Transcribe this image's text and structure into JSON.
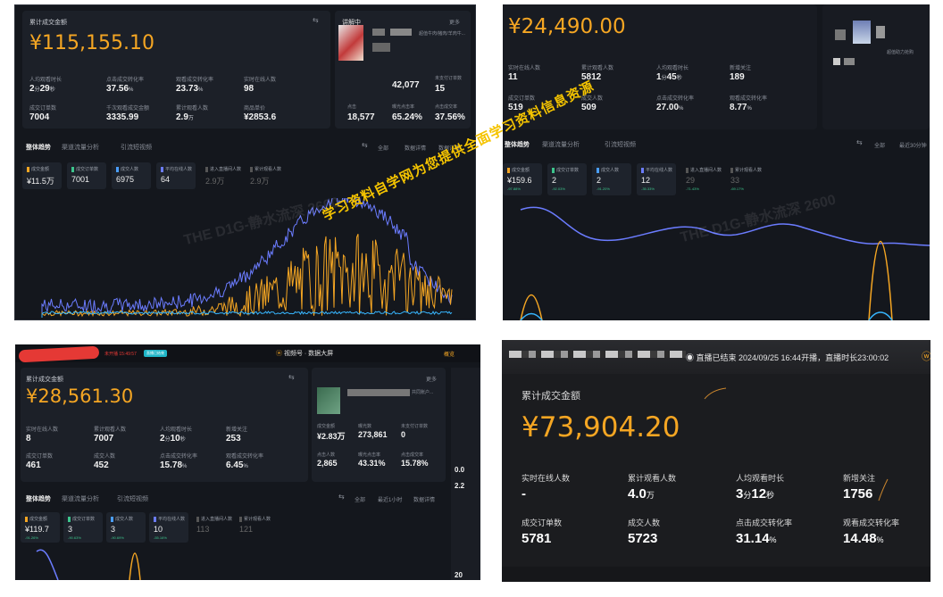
{
  "panel1": {
    "total_label": "累计成交金额",
    "total_value": "¥115,155.10",
    "metrics": [
      {
        "label": "人均观看时长",
        "value": "2",
        "unit_a": "分",
        "value_b": "29",
        "unit_b": "秒"
      },
      {
        "label": "点击成交转化率",
        "value": "37.56",
        "unit_a": "%"
      },
      {
        "label": "观看成交转化率",
        "value": "23.73",
        "unit_a": "%"
      },
      {
        "label": "实时在线人数",
        "value": "98"
      },
      {
        "label": "成交订单数",
        "value": "7004"
      },
      {
        "label": "千次观看成交金额",
        "value": "3335.99"
      },
      {
        "label": "累计观看人数",
        "value": "2.9",
        "unit_a": "万"
      },
      {
        "label": "商品单价",
        "value": "¥2853.6"
      }
    ],
    "right_card": {
      "title": "讲解中",
      "more": "更多",
      "subtitle": "超值牛肉/猪肉/羊肉牛...",
      "sold_value": "42,077",
      "orders_label": "未支付订单数",
      "orders_value": "15",
      "stats": [
        {
          "label": "点击",
          "value": "18,577"
        },
        {
          "label": "曝光点击率",
          "value": "65.24%"
        },
        {
          "label": "点击成交率",
          "value": "37.56%"
        }
      ]
    },
    "tabs": [
      "整体趋势",
      "渠道流量分析",
      "引流短视频"
    ],
    "controls": [
      "全部",
      "数据详情",
      "数据详情"
    ],
    "chips": [
      {
        "label": "成交金额",
        "value": "¥11.5万",
        "color": "#f5a623"
      },
      {
        "label": "成交订单数",
        "value": "7001",
        "color": "#3cc48c"
      },
      {
        "label": "成交人数",
        "value": "6975",
        "color": "#4a9eff"
      },
      {
        "label": "平均在线人数",
        "value": "64",
        "color": "#6b7cff"
      },
      {
        "label": "进入直播间人数",
        "value": "2.9万",
        "color": "#555"
      },
      {
        "label": "累计观看人数",
        "value": "2.9万",
        "color": "#555"
      }
    ],
    "watermark": "THE D1G-静水流深 2600"
  },
  "panel2": {
    "total_value": "¥24,490.00",
    "metrics": [
      {
        "label": "实时在线人数",
        "value": "11"
      },
      {
        "label": "累计观看人数",
        "value": "5812"
      },
      {
        "label": "人均观看时长",
        "value": "1",
        "unit_a": "分",
        "value_b": "45",
        "unit_b": "秒"
      },
      {
        "label": "新增关注",
        "value": "189"
      },
      {
        "label": "成交订单数",
        "value": "519"
      },
      {
        "label": "成交人数",
        "value": "509"
      },
      {
        "label": "点击成交转化率",
        "value": "27.00",
        "unit_a": "%"
      },
      {
        "label": "观看成交转化率",
        "value": "8.77",
        "unit_a": "%"
      }
    ],
    "right_text": "超值助力抢购",
    "tabs": [
      "整体趋势",
      "渠道流量分析",
      "引流短视频"
    ],
    "controls": [
      "全部",
      "最近30分钟"
    ],
    "chips": [
      {
        "label": "成交金额",
        "value": "¥159.6",
        "change": "-97.88%",
        "color": "#f5a623"
      },
      {
        "label": "成交订单数",
        "value": "2",
        "change": "-92.03%",
        "color": "#3cc48c"
      },
      {
        "label": "成交人数",
        "value": "2",
        "change": "-91.20%",
        "color": "#4a9eff"
      },
      {
        "label": "平均在线人数",
        "value": "12",
        "change": "-35.33%",
        "color": "#6b7cff"
      },
      {
        "label": "进入直播间人数",
        "value": "29",
        "change": "-71.43%",
        "color": "#555"
      },
      {
        "label": "累计观看人数",
        "value": "33",
        "change": "-69.17%",
        "color": "#555"
      }
    ],
    "watermark": "THE D1G-静水流深 2600"
  },
  "panel3": {
    "status": "未开播 15:49:57",
    "badge": "直播已结束",
    "header_title": "视频号 · 数据大屏",
    "header_right": "概览",
    "total_label": "累计成交金额",
    "total_value": "¥28,561.30",
    "metrics": [
      {
        "label": "实时在线人数",
        "value": "8"
      },
      {
        "label": "累计观看人数",
        "value": "7007"
      },
      {
        "label": "人均观看时长",
        "value": "2",
        "unit_a": "分",
        "value_b": "10",
        "unit_b": "秒"
      },
      {
        "label": "新增关注",
        "value": "253"
      },
      {
        "label": "成交订单数",
        "value": "461"
      },
      {
        "label": "成交人数",
        "value": "452"
      },
      {
        "label": "点击成交转化率",
        "value": "15.78",
        "unit_a": "%"
      },
      {
        "label": "观看成交转化率",
        "value": "6.45",
        "unit_a": "%"
      }
    ],
    "right_card": {
      "more": "更多",
      "desc": "共同账户...",
      "stats": [
        {
          "label": "成交金额",
          "value": "¥2.83万"
        },
        {
          "label": "曝光数",
          "value": "273,861"
        },
        {
          "label": "未支付订单数",
          "value": "0"
        },
        {
          "label": "点击人数",
          "value": "2,865"
        },
        {
          "label": "曝光点击率",
          "value": "43.31%"
        },
        {
          "label": "点击成交率",
          "value": "15.78%"
        }
      ]
    },
    "tabs": [
      "整体趋势",
      "渠道流量分析",
      "引流短视频"
    ],
    "controls": [
      "全部",
      "最近1小时",
      "数据详情"
    ],
    "chips": [
      {
        "label": "成交金额",
        "value": "¥119.7",
        "change": "-91.26%",
        "color": "#f5a623"
      },
      {
        "label": "成交订单数",
        "value": "3",
        "change": "-90.63%",
        "color": "#3cc48c"
      },
      {
        "label": "成交人数",
        "value": "3",
        "change": "-90.69%",
        "color": "#4a9eff"
      },
      {
        "label": "平均在线人数",
        "value": "10",
        "change": "-55.16%",
        "color": "#6b7cff"
      },
      {
        "label": "进入直播间人数",
        "value": "113",
        "change": "",
        "color": "#555"
      },
      {
        "label": "累计观看人数",
        "value": "121",
        "change": "",
        "color": "#555"
      }
    ],
    "side_values": [
      "0.0",
      "2.2",
      "20"
    ]
  },
  "panel4": {
    "header_text": "◉ 直播已结束 2024/09/25 16:44开播，直播时长23:00:02",
    "total_label": "累计成交金额",
    "total_value": "¥73,904.20",
    "metrics": [
      {
        "label": "实时在线人数",
        "value": "-"
      },
      {
        "label": "累计观看人数",
        "value": "4.0",
        "unit_a": "万"
      },
      {
        "label": "人均观看时长",
        "value": "3",
        "unit_a": "分",
        "value_b": "12",
        "unit_b": "秒"
      },
      {
        "label": "新增关注",
        "value": "1756"
      },
      {
        "label": "成交订单数",
        "value": "5781"
      },
      {
        "label": "成交人数",
        "value": "5723"
      },
      {
        "label": "点击成交转化率",
        "value": "31.14",
        "unit_a": "%"
      },
      {
        "label": "观看成交转化率",
        "value": "14.48",
        "unit_a": "%"
      }
    ]
  },
  "overlay_watermark": "学习资料自学网为您提供全面学习资料信息资源",
  "colors": {
    "accent": "#f5a623",
    "blue": "#6b7cff",
    "cyan": "#37b6ff",
    "bg": "#14171d"
  }
}
